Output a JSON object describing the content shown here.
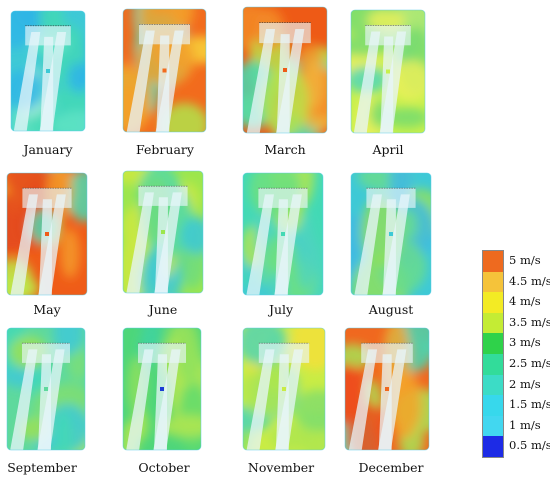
{
  "months": [
    {
      "label": "January",
      "palette": [
        "#3ec9d6",
        "#43d9b5",
        "#5fe3c4",
        "#a6ecd8",
        "#2fb6e6"
      ]
    },
    {
      "label": "February",
      "palette": [
        "#f26b1d",
        "#f3a02c",
        "#b2e34a",
        "#43d9b5",
        "#f8d43a"
      ]
    },
    {
      "label": "March",
      "palette": [
        "#ee5a16",
        "#f38a26",
        "#b8e24a",
        "#46d9b1",
        "#f2b13a"
      ]
    },
    {
      "label": "April",
      "palette": [
        "#c8f04c",
        "#76dc6e",
        "#4fd7b8",
        "#eaf05a",
        "#a4e67a"
      ]
    },
    {
      "label": "May",
      "palette": [
        "#ef5c18",
        "#f59a2a",
        "#bde748",
        "#4bd8b2",
        "#e44a1c"
      ]
    },
    {
      "label": "June",
      "palette": [
        "#9ce64e",
        "#52d9a7",
        "#6fdc7e",
        "#cde93f",
        "#3cc9d6"
      ]
    },
    {
      "label": "July",
      "palette": [
        "#43d9b5",
        "#6ee17e",
        "#b3e64b",
        "#3ec9d6",
        "#4fd3c0"
      ]
    },
    {
      "label": "August",
      "palette": [
        "#3ec9d6",
        "#55dba6",
        "#8ee15d",
        "#3fb8e3",
        "#68dc8e"
      ]
    },
    {
      "label": "September",
      "palette": [
        "#5ed99d",
        "#43d9b5",
        "#9de252",
        "#3ec9d6",
        "#7bde78"
      ]
    },
    {
      "label": "October",
      "palette": [
        "#4ed67a",
        "#62dc6c",
        "#8ee15d",
        "#3fd49d",
        "#b2e650"
      ]
    },
    {
      "label": "November",
      "palette": [
        "#c9ec45",
        "#f3e13b",
        "#7fdf6c",
        "#4fd6b3",
        "#aee64f"
      ]
    },
    {
      "label": "December",
      "palette": [
        "#f0681f",
        "#f4a42c",
        "#a8e355",
        "#45d8b4",
        "#ee4f1a"
      ]
    }
  ],
  "legend": {
    "items": [
      {
        "label": "5 m/s",
        "color": "#ee6a1f"
      },
      {
        "label": "4.5 m/s",
        "color": "#f5c33a"
      },
      {
        "label": "4 m/s",
        "color": "#f3eb24"
      },
      {
        "label": "3.5 m/s",
        "color": "#c4ec34"
      },
      {
        "label": "3 m/s",
        "color": "#2fd24a"
      },
      {
        "label": "2.5 m/s",
        "color": "#32dc9a"
      },
      {
        "label": "2 m/s",
        "color": "#3cdcc6"
      },
      {
        "label": "1.5 m/s",
        "color": "#37d8ec"
      },
      {
        "label": "1 m/s",
        "color": "#42d7f0"
      },
      {
        "label": "0.5 m/s",
        "color": "#1d2be6"
      }
    ]
  },
  "colors": {
    "background": "#ffffff",
    "wake": "#e8f6fb",
    "outline": "#58cce8",
    "marker": "#1a3cd6"
  }
}
